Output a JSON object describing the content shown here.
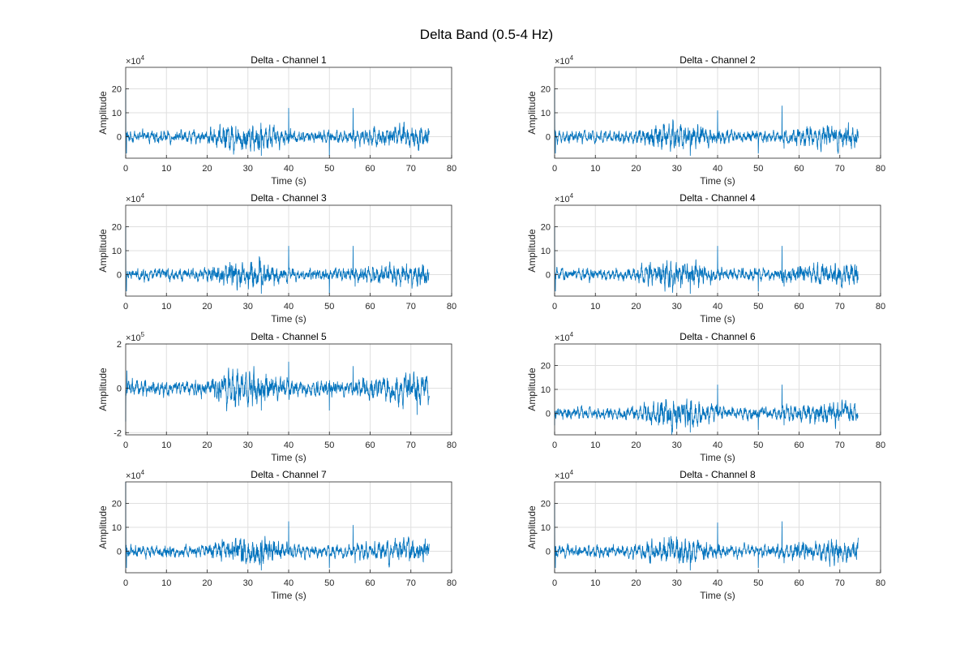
{
  "figure_title": "Delta Band (0.5-4 Hz)",
  "series_color": "#0072BD",
  "grid": true,
  "chart_data": [
    {
      "type": "line",
      "title": "Delta - Channel 1",
      "xlabel": "Time (s)",
      "ylabel": "Amplitude",
      "exponent_base": "×10",
      "exponent_power": "4",
      "xlim": [
        0,
        80
      ],
      "ylim": [
        -9,
        29
      ],
      "xticks": [
        0,
        10,
        20,
        30,
        40,
        50,
        60,
        70,
        80
      ],
      "yticks": [
        0,
        10,
        20
      ],
      "duration": 74.5,
      "spikes": [
        [
          0,
          20
        ],
        [
          0.2,
          -7
        ],
        [
          33.3,
          -8
        ],
        [
          40,
          12
        ],
        [
          50,
          -8
        ],
        [
          55.8,
          12
        ],
        [
          56.3,
          -5
        ]
      ]
    },
    {
      "type": "line",
      "title": "Delta - Channel 2",
      "xlabel": "Time (s)",
      "ylabel": "Amplitude",
      "exponent_base": "×10",
      "exponent_power": "4",
      "xlim": [
        0,
        80
      ],
      "ylim": [
        -9,
        29
      ],
      "xticks": [
        0,
        10,
        20,
        30,
        40,
        50,
        60,
        70,
        80
      ],
      "yticks": [
        0,
        10,
        20
      ],
      "duration": 74.5,
      "spikes": [
        [
          0,
          20
        ],
        [
          0.2,
          -7
        ],
        [
          33.3,
          -8
        ],
        [
          40,
          11
        ],
        [
          50,
          -7
        ],
        [
          55.8,
          13
        ],
        [
          56.3,
          -5
        ]
      ]
    },
    {
      "type": "line",
      "title": "Delta - Channel 3",
      "xlabel": "Time (s)",
      "ylabel": "Amplitude",
      "exponent_base": "×10",
      "exponent_power": "4",
      "xlim": [
        0,
        80
      ],
      "ylim": [
        -9,
        29
      ],
      "xticks": [
        0,
        10,
        20,
        30,
        40,
        50,
        60,
        70,
        80
      ],
      "yticks": [
        0,
        10,
        20
      ],
      "duration": 74.5,
      "spikes": [
        [
          0,
          20
        ],
        [
          0.2,
          -7
        ],
        [
          33.3,
          -8
        ],
        [
          40,
          12
        ],
        [
          50,
          -8
        ],
        [
          55.8,
          12
        ],
        [
          56.3,
          -5
        ]
      ]
    },
    {
      "type": "line",
      "title": "Delta - Channel 4",
      "xlabel": "Time (s)",
      "ylabel": "Amplitude",
      "exponent_base": "×10",
      "exponent_power": "4",
      "xlim": [
        0,
        80
      ],
      "ylim": [
        -9,
        29
      ],
      "xticks": [
        0,
        10,
        20,
        30,
        40,
        50,
        60,
        70,
        80
      ],
      "yticks": [
        0,
        10,
        20
      ],
      "duration": 74.5,
      "spikes": [
        [
          0,
          20
        ],
        [
          0.2,
          -7
        ],
        [
          33.3,
          -8
        ],
        [
          40,
          12
        ],
        [
          50,
          -7
        ],
        [
          55.8,
          12
        ],
        [
          56.3,
          -5
        ]
      ]
    },
    {
      "type": "line",
      "title": "Delta - Channel 5",
      "xlabel": "Time (s)",
      "ylabel": "Amplitude",
      "exponent_base": "×10",
      "exponent_power": "5",
      "xlim": [
        0,
        80
      ],
      "ylim": [
        -2.1,
        2
      ],
      "xticks": [
        0,
        10,
        20,
        30,
        40,
        50,
        60,
        70,
        80
      ],
      "yticks": [
        -2,
        0,
        2
      ],
      "duration": 74.5,
      "spikes": [
        [
          0,
          -1.5
        ],
        [
          0.3,
          0.8
        ],
        [
          33.3,
          -1
        ],
        [
          40,
          1.2
        ],
        [
          50,
          -1
        ],
        [
          55.8,
          1
        ],
        [
          71.5,
          -1.2
        ]
      ]
    },
    {
      "type": "line",
      "title": "Delta - Channel 6",
      "xlabel": "Time (s)",
      "ylabel": "Amplitude",
      "exponent_base": "×10",
      "exponent_power": "4",
      "xlim": [
        0,
        80
      ],
      "ylim": [
        -9,
        29
      ],
      "xticks": [
        0,
        10,
        20,
        30,
        40,
        50,
        60,
        70,
        80
      ],
      "yticks": [
        0,
        10,
        20
      ],
      "duration": 74.5,
      "spikes": [
        [
          0,
          -5
        ],
        [
          33.3,
          -8
        ],
        [
          40,
          12
        ],
        [
          50,
          -7
        ],
        [
          55.8,
          12
        ],
        [
          56.3,
          -5
        ]
      ]
    },
    {
      "type": "line",
      "title": "Delta - Channel 7",
      "xlabel": "Time (s)",
      "ylabel": "Amplitude",
      "exponent_base": "×10",
      "exponent_power": "4",
      "xlim": [
        0,
        80
      ],
      "ylim": [
        -9,
        29
      ],
      "xticks": [
        0,
        10,
        20,
        30,
        40,
        50,
        60,
        70,
        80
      ],
      "yticks": [
        0,
        10,
        20
      ],
      "duration": 74.5,
      "spikes": [
        [
          0,
          29
        ],
        [
          0.2,
          -7
        ],
        [
          33.3,
          -8
        ],
        [
          40,
          12.5
        ],
        [
          50,
          -7
        ],
        [
          55.8,
          11
        ],
        [
          56.3,
          -5
        ]
      ]
    },
    {
      "type": "line",
      "title": "Delta - Channel 8",
      "xlabel": "Time (s)",
      "ylabel": "Amplitude",
      "exponent_base": "×10",
      "exponent_power": "4",
      "xlim": [
        0,
        80
      ],
      "ylim": [
        -9,
        29
      ],
      "xticks": [
        0,
        10,
        20,
        30,
        40,
        50,
        60,
        70,
        80
      ],
      "yticks": [
        0,
        10,
        20
      ],
      "duration": 74.5,
      "spikes": [
        [
          0,
          20
        ],
        [
          0.2,
          -7
        ],
        [
          33.3,
          -8
        ],
        [
          40,
          12
        ],
        [
          50,
          -7
        ],
        [
          55.8,
          12.5
        ],
        [
          56.3,
          -5
        ]
      ]
    }
  ]
}
